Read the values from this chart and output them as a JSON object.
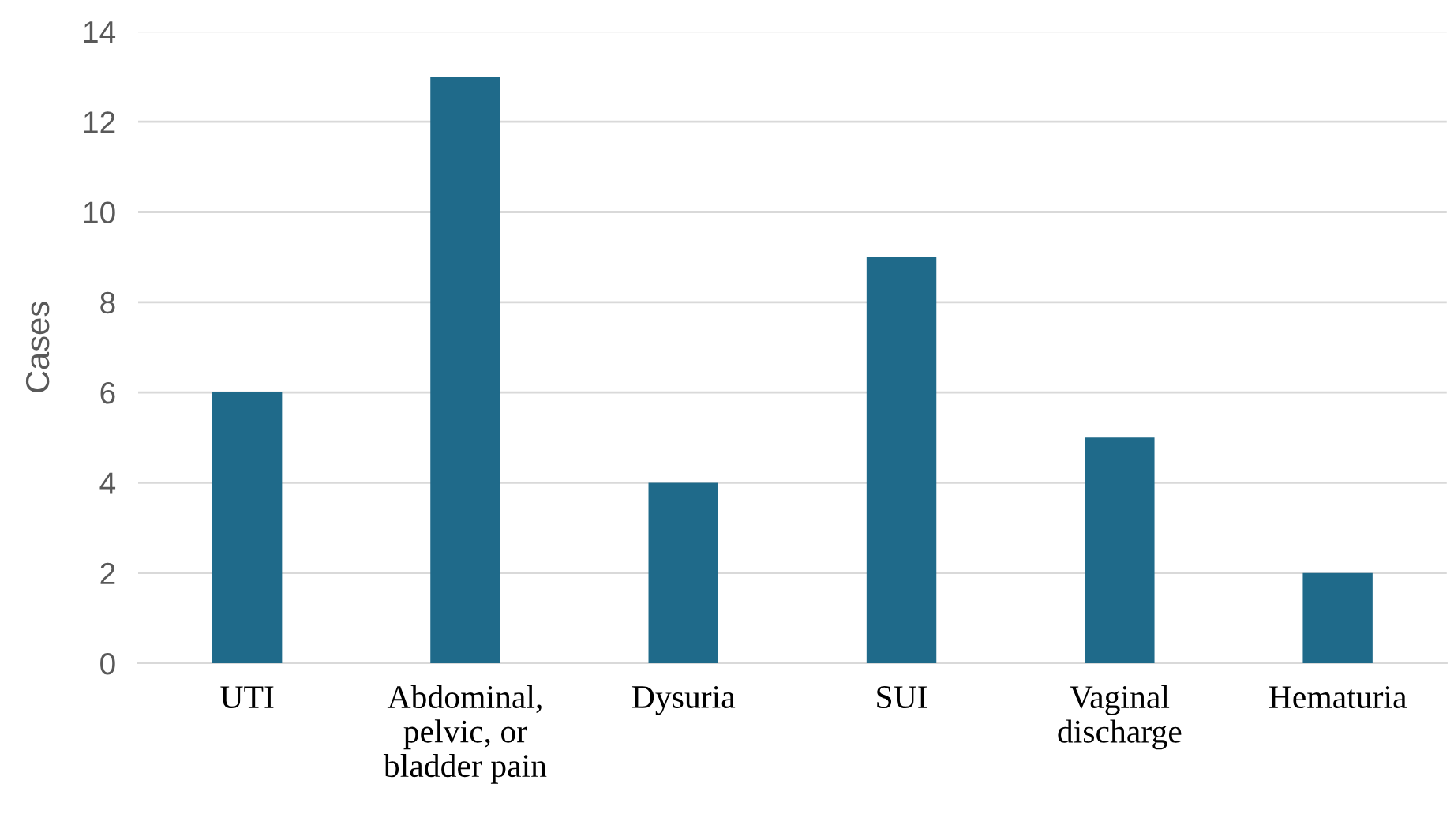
{
  "chart_data": {
    "type": "bar",
    "ylabel": "Cases",
    "categories": [
      "UTI",
      "Abdominal,\npelvic, or\nbladder pain",
      "Dysuria",
      "SUI",
      "Vaginal\ndischarge",
      "Hematuria"
    ],
    "values": [
      6,
      13,
      4,
      9,
      5,
      2
    ],
    "color": "#1f6a8a",
    "ylim": [
      0,
      14
    ],
    "yticks": [
      0,
      2,
      4,
      6,
      8,
      10,
      12,
      14
    ],
    "grid": "y"
  }
}
